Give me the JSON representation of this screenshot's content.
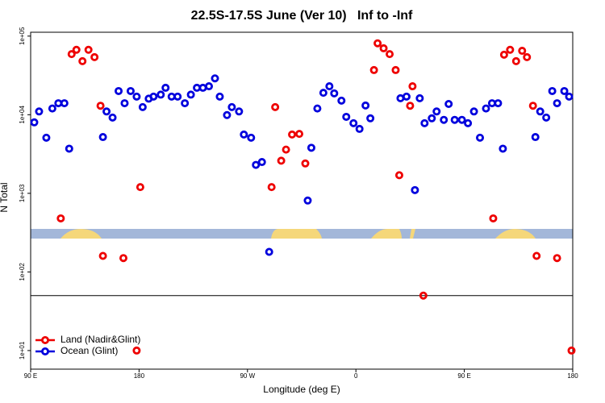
{
  "chart_data": {
    "type": "scatter",
    "title": "22.5S-17.5S June (Ver 10)   Inf to -Inf",
    "x_label": "Longitude (deg E)",
    "y_label": "N Total",
    "log_y": true,
    "legend": "bottomleft",
    "hline": 50,
    "xlim": [
      90,
      540
    ],
    "ylim": [
      5.8,
      112000
    ],
    "xticks": [
      {
        "value": 90,
        "label": "90 E"
      },
      180,
      {
        "value": 270,
        "label": "90 W"
      },
      {
        "value": 360,
        "label": "0"
      },
      {
        "value": 450,
        "label": "90 E"
      },
      {
        "value": 540,
        "label": "180"
      }
    ],
    "yticks": [
      {
        "value": 10,
        "label": "1e+01"
      },
      {
        "value": 100,
        "label": "1e+02"
      },
      {
        "value": 1000,
        "label": "1e+03"
      },
      {
        "value": 10000,
        "label": "1e+04"
      },
      {
        "value": 100000,
        "label": "1e+05"
      }
    ],
    "series": [
      {
        "name": "Land (Nadir&Glint)",
        "color": "#ee0000",
        "x": [
          115,
          124,
          128,
          133,
          138,
          143,
          148,
          150,
          167,
          181,
          178,
          290,
          293,
          298,
          302,
          307,
          313,
          318,
          375,
          378,
          383,
          388,
          393,
          396,
          405,
          407,
          416,
          474,
          483,
          488,
          493,
          498,
          502,
          507,
          510,
          527,
          539
        ],
        "values": [
          480,
          59000,
          67000,
          48000,
          67000,
          54000,
          13000,
          160,
          150,
          1200,
          10,
          1200,
          12500,
          2600,
          3600,
          5600,
          5700,
          2400,
          37000,
          81000,
          70000,
          59000,
          37000,
          1700,
          13000,
          23000,
          50,
          480,
          58000,
          67000,
          48000,
          65000,
          54000,
          13000,
          160,
          150,
          10
        ]
      },
      {
        "name": "Ocean (Glint)",
        "color": "#0000dd",
        "x": [
          93,
          97,
          103,
          108,
          113,
          118,
          122,
          150,
          153,
          158,
          163,
          168,
          173,
          178,
          183,
          188,
          192,
          198,
          202,
          207,
          212,
          218,
          223,
          228,
          233,
          238,
          243,
          247,
          253,
          257,
          263,
          267,
          273,
          277,
          282,
          288,
          320,
          323,
          328,
          333,
          338,
          342,
          348,
          352,
          358,
          363,
          368,
          372,
          397,
          402,
          409,
          413,
          417,
          423,
          427,
          433,
          437,
          442,
          448,
          453,
          458,
          463,
          468,
          473,
          478,
          482,
          509,
          513,
          518,
          523,
          527,
          533,
          537
        ],
        "values": [
          8000,
          11000,
          5100,
          12000,
          14000,
          14000,
          3700,
          5200,
          11000,
          9200,
          20000,
          14000,
          20000,
          17000,
          12500,
          16000,
          17000,
          18000,
          22000,
          17000,
          17000,
          14000,
          18000,
          22000,
          22000,
          23000,
          29000,
          17000,
          9900,
          12500,
          11000,
          5600,
          5100,
          2300,
          2500,
          180,
          810,
          3800,
          12000,
          19000,
          23000,
          18700,
          15100,
          9400,
          7800,
          6600,
          13100,
          9000,
          16200,
          17000,
          1100,
          16200,
          7800,
          9000,
          11000,
          8600,
          13700,
          8600,
          8600,
          7800,
          11000,
          5100,
          12000,
          14000,
          14000,
          3700,
          5200,
          11000,
          9200,
          20000,
          14000,
          20000,
          17000
        ]
      }
    ]
  }
}
